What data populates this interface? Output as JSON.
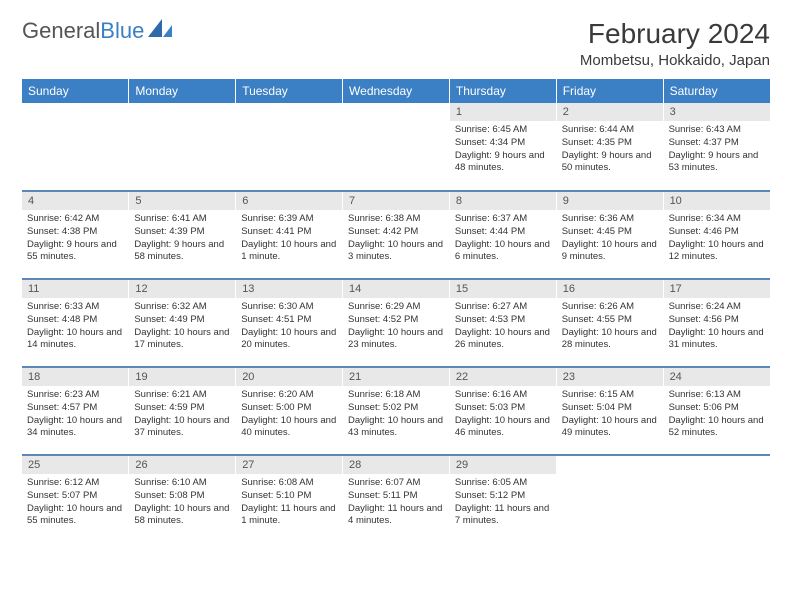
{
  "brand": {
    "part1": "General",
    "part2": "Blue"
  },
  "title": "February 2024",
  "location": "Mombetsu, Hokkaido, Japan",
  "colors": {
    "header_bg": "#3b7fc4",
    "header_text": "#ffffff",
    "daynum_bg": "#e8e8e8",
    "row_divider": "#5c89b8",
    "text": "#333333",
    "logo_gray": "#555555",
    "logo_blue": "#3b7fc4"
  },
  "weekdays": [
    "Sunday",
    "Monday",
    "Tuesday",
    "Wednesday",
    "Thursday",
    "Friday",
    "Saturday"
  ],
  "weeks": [
    [
      {
        "n": "",
        "sr": "",
        "ss": "",
        "dl": ""
      },
      {
        "n": "",
        "sr": "",
        "ss": "",
        "dl": ""
      },
      {
        "n": "",
        "sr": "",
        "ss": "",
        "dl": ""
      },
      {
        "n": "",
        "sr": "",
        "ss": "",
        "dl": ""
      },
      {
        "n": "1",
        "sr": "Sunrise: 6:45 AM",
        "ss": "Sunset: 4:34 PM",
        "dl": "Daylight: 9 hours and 48 minutes."
      },
      {
        "n": "2",
        "sr": "Sunrise: 6:44 AM",
        "ss": "Sunset: 4:35 PM",
        "dl": "Daylight: 9 hours and 50 minutes."
      },
      {
        "n": "3",
        "sr": "Sunrise: 6:43 AM",
        "ss": "Sunset: 4:37 PM",
        "dl": "Daylight: 9 hours and 53 minutes."
      }
    ],
    [
      {
        "n": "4",
        "sr": "Sunrise: 6:42 AM",
        "ss": "Sunset: 4:38 PM",
        "dl": "Daylight: 9 hours and 55 minutes."
      },
      {
        "n": "5",
        "sr": "Sunrise: 6:41 AM",
        "ss": "Sunset: 4:39 PM",
        "dl": "Daylight: 9 hours and 58 minutes."
      },
      {
        "n": "6",
        "sr": "Sunrise: 6:39 AM",
        "ss": "Sunset: 4:41 PM",
        "dl": "Daylight: 10 hours and 1 minute."
      },
      {
        "n": "7",
        "sr": "Sunrise: 6:38 AM",
        "ss": "Sunset: 4:42 PM",
        "dl": "Daylight: 10 hours and 3 minutes."
      },
      {
        "n": "8",
        "sr": "Sunrise: 6:37 AM",
        "ss": "Sunset: 4:44 PM",
        "dl": "Daylight: 10 hours and 6 minutes."
      },
      {
        "n": "9",
        "sr": "Sunrise: 6:36 AM",
        "ss": "Sunset: 4:45 PM",
        "dl": "Daylight: 10 hours and 9 minutes."
      },
      {
        "n": "10",
        "sr": "Sunrise: 6:34 AM",
        "ss": "Sunset: 4:46 PM",
        "dl": "Daylight: 10 hours and 12 minutes."
      }
    ],
    [
      {
        "n": "11",
        "sr": "Sunrise: 6:33 AM",
        "ss": "Sunset: 4:48 PM",
        "dl": "Daylight: 10 hours and 14 minutes."
      },
      {
        "n": "12",
        "sr": "Sunrise: 6:32 AM",
        "ss": "Sunset: 4:49 PM",
        "dl": "Daylight: 10 hours and 17 minutes."
      },
      {
        "n": "13",
        "sr": "Sunrise: 6:30 AM",
        "ss": "Sunset: 4:51 PM",
        "dl": "Daylight: 10 hours and 20 minutes."
      },
      {
        "n": "14",
        "sr": "Sunrise: 6:29 AM",
        "ss": "Sunset: 4:52 PM",
        "dl": "Daylight: 10 hours and 23 minutes."
      },
      {
        "n": "15",
        "sr": "Sunrise: 6:27 AM",
        "ss": "Sunset: 4:53 PM",
        "dl": "Daylight: 10 hours and 26 minutes."
      },
      {
        "n": "16",
        "sr": "Sunrise: 6:26 AM",
        "ss": "Sunset: 4:55 PM",
        "dl": "Daylight: 10 hours and 28 minutes."
      },
      {
        "n": "17",
        "sr": "Sunrise: 6:24 AM",
        "ss": "Sunset: 4:56 PM",
        "dl": "Daylight: 10 hours and 31 minutes."
      }
    ],
    [
      {
        "n": "18",
        "sr": "Sunrise: 6:23 AM",
        "ss": "Sunset: 4:57 PM",
        "dl": "Daylight: 10 hours and 34 minutes."
      },
      {
        "n": "19",
        "sr": "Sunrise: 6:21 AM",
        "ss": "Sunset: 4:59 PM",
        "dl": "Daylight: 10 hours and 37 minutes."
      },
      {
        "n": "20",
        "sr": "Sunrise: 6:20 AM",
        "ss": "Sunset: 5:00 PM",
        "dl": "Daylight: 10 hours and 40 minutes."
      },
      {
        "n": "21",
        "sr": "Sunrise: 6:18 AM",
        "ss": "Sunset: 5:02 PM",
        "dl": "Daylight: 10 hours and 43 minutes."
      },
      {
        "n": "22",
        "sr": "Sunrise: 6:16 AM",
        "ss": "Sunset: 5:03 PM",
        "dl": "Daylight: 10 hours and 46 minutes."
      },
      {
        "n": "23",
        "sr": "Sunrise: 6:15 AM",
        "ss": "Sunset: 5:04 PM",
        "dl": "Daylight: 10 hours and 49 minutes."
      },
      {
        "n": "24",
        "sr": "Sunrise: 6:13 AM",
        "ss": "Sunset: 5:06 PM",
        "dl": "Daylight: 10 hours and 52 minutes."
      }
    ],
    [
      {
        "n": "25",
        "sr": "Sunrise: 6:12 AM",
        "ss": "Sunset: 5:07 PM",
        "dl": "Daylight: 10 hours and 55 minutes."
      },
      {
        "n": "26",
        "sr": "Sunrise: 6:10 AM",
        "ss": "Sunset: 5:08 PM",
        "dl": "Daylight: 10 hours and 58 minutes."
      },
      {
        "n": "27",
        "sr": "Sunrise: 6:08 AM",
        "ss": "Sunset: 5:10 PM",
        "dl": "Daylight: 11 hours and 1 minute."
      },
      {
        "n": "28",
        "sr": "Sunrise: 6:07 AM",
        "ss": "Sunset: 5:11 PM",
        "dl": "Daylight: 11 hours and 4 minutes."
      },
      {
        "n": "29",
        "sr": "Sunrise: 6:05 AM",
        "ss": "Sunset: 5:12 PM",
        "dl": "Daylight: 11 hours and 7 minutes."
      },
      {
        "n": "",
        "sr": "",
        "ss": "",
        "dl": ""
      },
      {
        "n": "",
        "sr": "",
        "ss": "",
        "dl": ""
      }
    ]
  ]
}
